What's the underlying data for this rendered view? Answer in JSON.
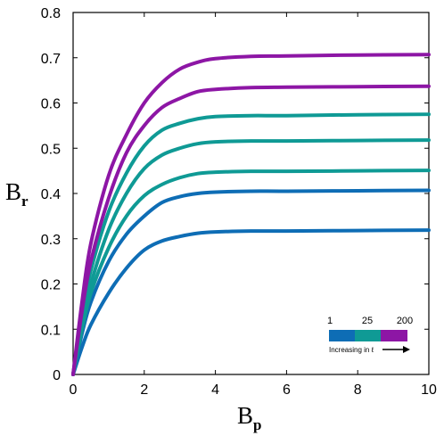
{
  "chart_data": {
    "type": "line",
    "xlabel_main": "B",
    "xlabel_sub": "p",
    "ylabel_main": "B",
    "ylabel_sub": "r",
    "xlim": [
      0,
      10
    ],
    "ylim": [
      0,
      0.8
    ],
    "x_ticks": [
      "0",
      "2",
      "4",
      "6",
      "8",
      "10"
    ],
    "y_ticks": [
      "0",
      "0.1",
      "0.2",
      "0.3",
      "0.4",
      "0.5",
      "0.6",
      "0.7",
      "0.8"
    ],
    "grid": false,
    "series": [
      {
        "color": "#0e6db5",
        "x": [
          0,
          0.25,
          0.5,
          1,
          1.5,
          2,
          2.5,
          3,
          3.5,
          4,
          5,
          6,
          8,
          10
        ],
        "y": [
          0,
          0.06,
          0.11,
          0.18,
          0.235,
          0.275,
          0.295,
          0.305,
          0.312,
          0.315,
          0.317,
          0.317,
          0.318,
          0.319
        ]
      },
      {
        "color": "#0e6db5",
        "x": [
          0,
          0.25,
          0.5,
          1,
          1.5,
          2,
          2.5,
          3,
          3.5,
          4,
          5,
          6,
          8,
          10
        ],
        "y": [
          0,
          0.09,
          0.16,
          0.25,
          0.31,
          0.35,
          0.38,
          0.393,
          0.4,
          0.403,
          0.405,
          0.405,
          0.406,
          0.407
        ]
      },
      {
        "color": "#0f9a95",
        "x": [
          0,
          0.25,
          0.5,
          1,
          1.5,
          2,
          2.5,
          3,
          3.5,
          4,
          5,
          6,
          8,
          10
        ],
        "y": [
          0,
          0.1,
          0.18,
          0.28,
          0.35,
          0.395,
          0.42,
          0.435,
          0.444,
          0.447,
          0.449,
          0.449,
          0.45,
          0.451
        ]
      },
      {
        "color": "#0f9a95",
        "x": [
          0,
          0.25,
          0.5,
          1,
          1.5,
          2,
          2.5,
          3,
          3.5,
          4,
          5,
          6,
          8,
          10
        ],
        "y": [
          0,
          0.11,
          0.2,
          0.32,
          0.4,
          0.455,
          0.485,
          0.5,
          0.51,
          0.514,
          0.516,
          0.516,
          0.517,
          0.518
        ]
      },
      {
        "color": "#0f9a95",
        "x": [
          0,
          0.25,
          0.5,
          1,
          1.5,
          2,
          2.5,
          3,
          3.5,
          4,
          5,
          6,
          8,
          10
        ],
        "y": [
          0,
          0.13,
          0.23,
          0.36,
          0.445,
          0.505,
          0.54,
          0.555,
          0.565,
          0.57,
          0.572,
          0.572,
          0.574,
          0.575
        ]
      },
      {
        "color": "#8d16a5",
        "x": [
          0,
          0.25,
          0.5,
          1,
          1.5,
          2,
          2.5,
          3,
          3.5,
          4,
          5,
          6,
          8,
          10
        ],
        "y": [
          0,
          0.14,
          0.25,
          0.39,
          0.49,
          0.55,
          0.59,
          0.61,
          0.625,
          0.63,
          0.634,
          0.635,
          0.636,
          0.637
        ]
      },
      {
        "color": "#8d16a5",
        "x": [
          0,
          0.25,
          0.5,
          1,
          1.5,
          2,
          2.5,
          3,
          3.5,
          4,
          5,
          6,
          8,
          10
        ],
        "y": [
          0,
          0.16,
          0.29,
          0.44,
          0.53,
          0.6,
          0.645,
          0.675,
          0.69,
          0.698,
          0.703,
          0.704,
          0.706,
          0.707
        ]
      }
    ],
    "legend": {
      "labels": [
        "1",
        "25",
        "200"
      ],
      "colors": [
        "#0e6db5",
        "#0f9a95",
        "#8d16a5"
      ],
      "note": "Increasing in ℓ",
      "position": "lower-right"
    }
  }
}
